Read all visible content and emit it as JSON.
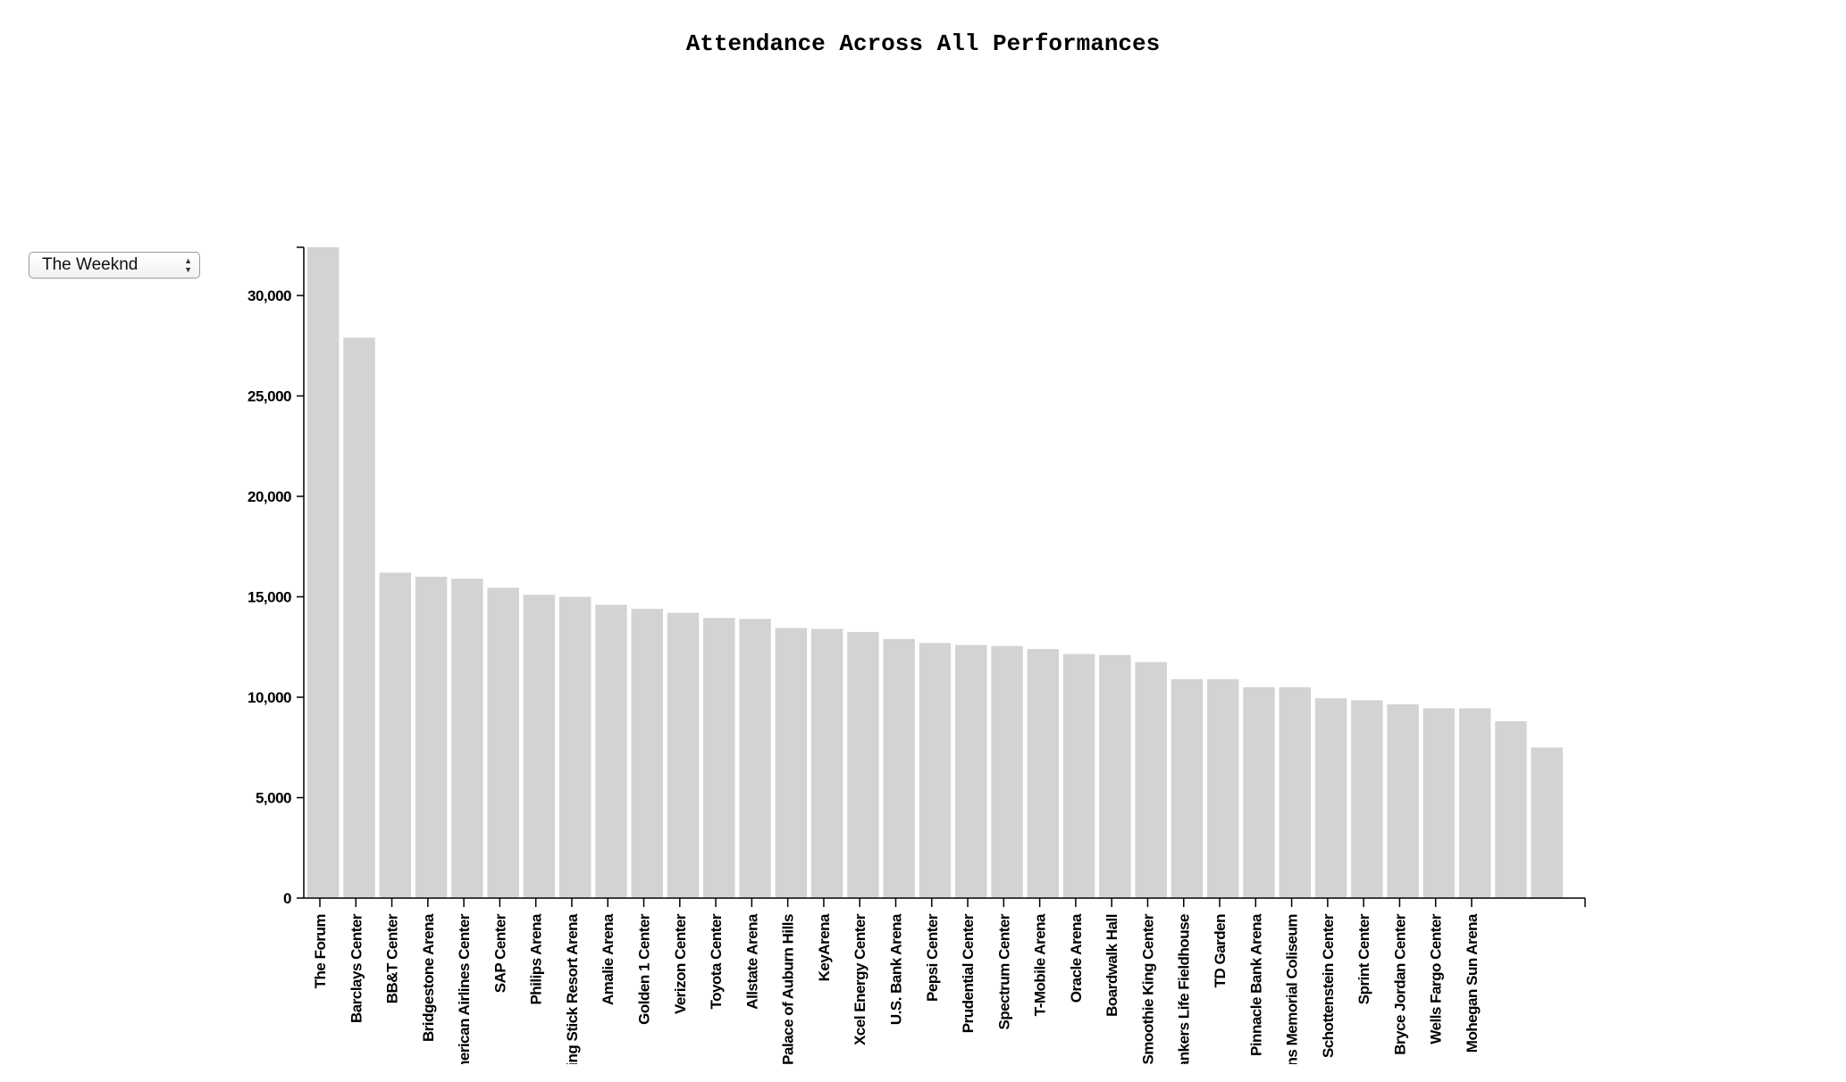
{
  "chart_data": {
    "type": "bar",
    "title": "Attendance Across All Performances",
    "selected_artist": "The Weeknd",
    "categories": [
      "The Forum",
      "Barclays Center",
      "BB&T Center",
      "Bridgestone Arena",
      "American Airlines Center",
      "SAP Center",
      "Philips Arena",
      "Talking Stick Resort Arena",
      "Amalie Arena",
      "Golden 1 Center",
      "Verizon Center",
      "Toyota Center",
      "Allstate Arena",
      "The Palace of Auburn Hills",
      "KeyArena",
      "Xcel Energy Center",
      "U.S. Bank Arena",
      "Pepsi Center",
      "Prudential Center",
      "Spectrum Center",
      "T-Mobile Arena",
      "Oracle Arena",
      "Boardwalk Hall",
      "Smoothie King Center",
      "Bankers Life Fieldhouse",
      "TD Garden",
      "Pinnacle Bank Arena",
      "Veterans Memorial Coliseum",
      "Schottenstein Center",
      "Sprint Center",
      "Bryce Jordan Center",
      "Wells Fargo Center",
      "Mohegan Sun Arena",
      "",
      ""
    ],
    "values": [
      33000,
      27900,
      16200,
      16000,
      15900,
      15450,
      15100,
      15000,
      14600,
      14400,
      14200,
      13950,
      13900,
      13450,
      13400,
      13250,
      12900,
      12700,
      12600,
      12550,
      12400,
      12150,
      12100,
      11750,
      10900,
      10900,
      10500,
      10500,
      9950,
      9850,
      9650,
      9450,
      9450,
      8800,
      7500
    ],
    "yticks": [
      0,
      5000,
      10000,
      15000,
      20000,
      25000,
      30000
    ],
    "ytick_labels": [
      "0",
      "5,000",
      "10,000",
      "15,000",
      "20,000",
      "25,000",
      "30,000"
    ],
    "ylim": [
      0,
      32400
    ],
    "bar_color": "#d3d3d3",
    "xlabel": "",
    "ylabel": ""
  }
}
